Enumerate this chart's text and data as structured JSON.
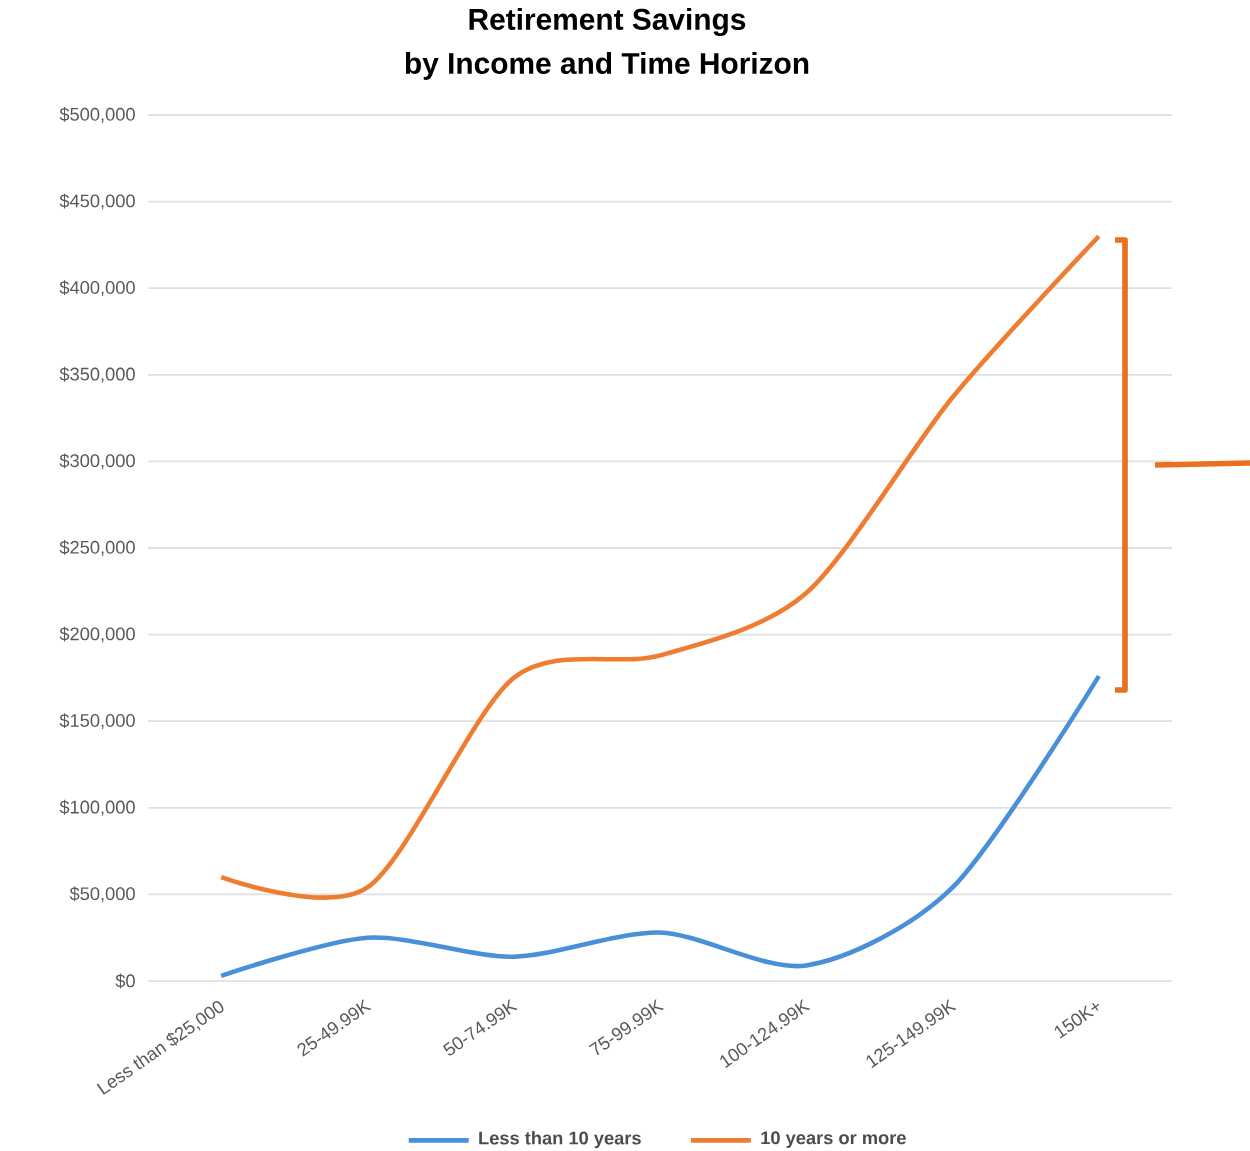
{
  "chart_data": {
    "type": "line",
    "title": "Retirement Savings",
    "subtitle": "by Income and Time Horizon",
    "categories": [
      "Less than $25,000",
      "25-49.99K",
      "50-74.99K",
      "75-99.99K",
      "100-124.99K",
      "125-149.99K",
      "150K+"
    ],
    "series": [
      {
        "name": "Less than 10 years",
        "color": "#4a90d9",
        "values": [
          3000,
          25000,
          14000,
          28000,
          9000,
          54000,
          176000
        ]
      },
      {
        "name": "10 years or more",
        "color": "#ee7d31",
        "values": [
          60000,
          54000,
          175000,
          188000,
          224000,
          337000,
          430000
        ]
      }
    ],
    "ylim": [
      0,
      500000
    ],
    "yticks": [
      {
        "value": 0,
        "label": "$0"
      },
      {
        "value": 50000,
        "label": "$50,000"
      },
      {
        "value": 100000,
        "label": "$100,000"
      },
      {
        "value": 150000,
        "label": "$150,000"
      },
      {
        "value": 200000,
        "label": "$200,000"
      },
      {
        "value": 250000,
        "label": "$250,000"
      },
      {
        "value": 300000,
        "label": "$300,000"
      },
      {
        "value": 350000,
        "label": "$350,000"
      },
      {
        "value": 400000,
        "label": "$400,000"
      },
      {
        "value": 450000,
        "label": "$450,000"
      },
      {
        "value": 500000,
        "label": "$500,000"
      }
    ],
    "grid": "y",
    "legend": "bottom",
    "marker": "none",
    "line_style": "solid"
  }
}
